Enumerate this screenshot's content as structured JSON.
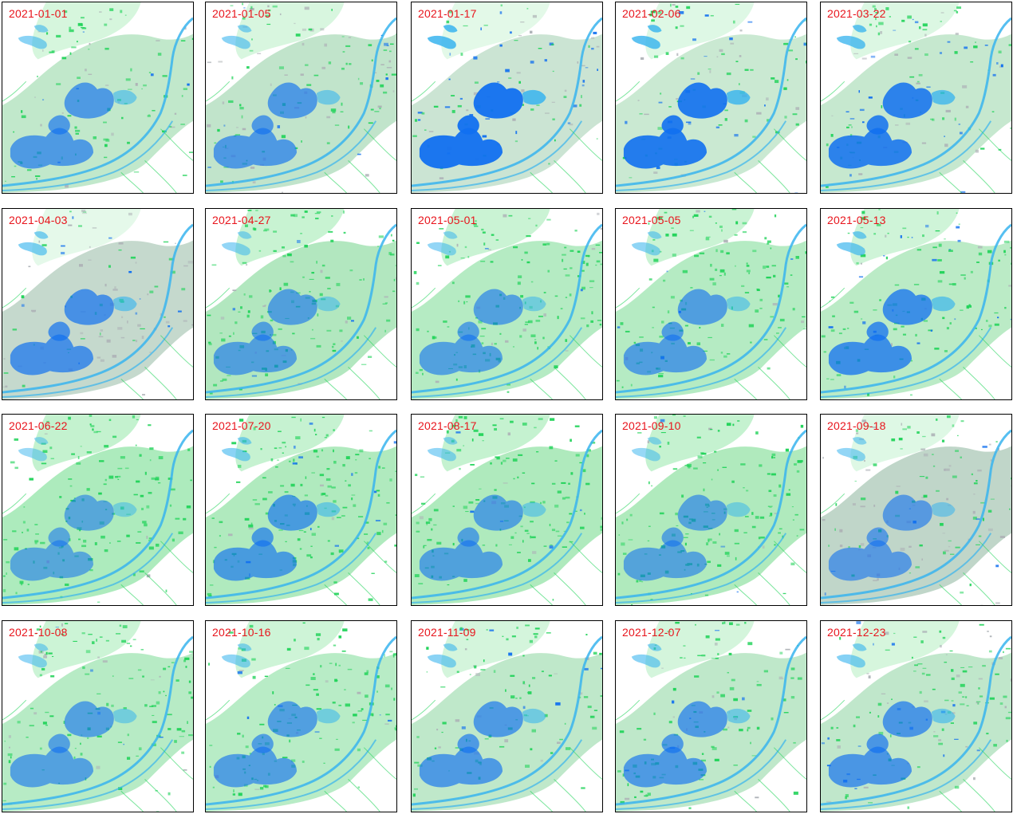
{
  "colors": {
    "vegetation": "#22d35a",
    "vegetation_light": "#8fe6a4",
    "water": "#1170f0",
    "water_light": "#38b4ee",
    "bare": "#aeb3b7",
    "label": "#e8141c",
    "border": "#000000"
  },
  "panels": [
    {
      "date": "2021-01-01",
      "green": 0.55,
      "gray": 0.25,
      "blue": 0.65
    },
    {
      "date": "2021-01-05",
      "green": 0.5,
      "gray": 0.4,
      "blue": 0.65
    },
    {
      "date": "2021-01-17",
      "green": 0.25,
      "gray": 0.45,
      "blue": 0.95
    },
    {
      "date": "2021-02-06",
      "green": 0.35,
      "gray": 0.35,
      "blue": 0.9
    },
    {
      "date": "2021-03-22",
      "green": 0.4,
      "gray": 0.35,
      "blue": 0.85
    },
    {
      "date": "2021-04-03",
      "green": 0.2,
      "gray": 0.8,
      "blue": 0.7
    },
    {
      "date": "2021-04-27",
      "green": 0.85,
      "gray": 0.2,
      "blue": 0.6
    },
    {
      "date": "2021-05-01",
      "green": 0.8,
      "gray": 0.1,
      "blue": 0.6
    },
    {
      "date": "2021-05-05",
      "green": 0.8,
      "gray": 0.1,
      "blue": 0.62
    },
    {
      "date": "2021-05-13",
      "green": 0.7,
      "gray": 0.15,
      "blue": 0.75
    },
    {
      "date": "2021-06-22",
      "green": 0.95,
      "gray": 0.05,
      "blue": 0.55
    },
    {
      "date": "2021-07-20",
      "green": 0.9,
      "gray": 0.08,
      "blue": 0.65
    },
    {
      "date": "2021-08-17",
      "green": 0.92,
      "gray": 0.1,
      "blue": 0.6
    },
    {
      "date": "2021-09-10",
      "green": 0.92,
      "gray": 0.08,
      "blue": 0.58
    },
    {
      "date": "2021-09-18",
      "green": 0.35,
      "gray": 0.85,
      "blue": 0.6
    },
    {
      "date": "2021-10-08",
      "green": 0.75,
      "gray": 0.1,
      "blue": 0.6
    },
    {
      "date": "2021-10-16",
      "green": 0.72,
      "gray": 0.12,
      "blue": 0.62
    },
    {
      "date": "2021-11-09",
      "green": 0.6,
      "gray": 0.25,
      "blue": 0.65
    },
    {
      "date": "2021-12-07",
      "green": 0.6,
      "gray": 0.25,
      "blue": 0.65
    },
    {
      "date": "2021-12-23",
      "green": 0.55,
      "gray": 0.3,
      "blue": 0.68
    }
  ]
}
